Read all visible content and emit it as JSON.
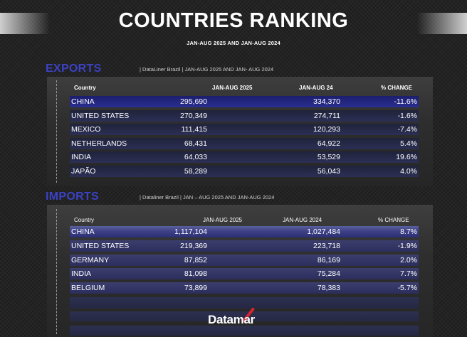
{
  "header": {
    "title": "COUNTRIES RANKING",
    "subtitle": "JAN-AUG 2025 AND JAN-AUG 2024"
  },
  "exports": {
    "title": "EXPORTS",
    "meta": "| DataLiner Brazil | JAN-AUG 2025 AND JAN- AUG 2024",
    "columns": [
      "Country",
      "JAN-AUG 2025",
      "JAN-AUG 24",
      "% CHANGE"
    ],
    "rows": [
      {
        "country": "CHINA",
        "y2025": "295,690",
        "y2024": "334,370",
        "change": "-11.6%"
      },
      {
        "country": "UNITED STATES",
        "y2025": "270,349",
        "y2024": "274,711",
        "change": "-1.6%"
      },
      {
        "country": "MEXICO",
        "y2025": "111,415",
        "y2024": "120,293",
        "change": "-7.4%"
      },
      {
        "country": "NETHERLANDS",
        "y2025": "68,431",
        "y2024": "64,922",
        "change": "5.4%"
      },
      {
        "country": "INDIA",
        "y2025": "64,033",
        "y2024": "53,529",
        "change": "19.6%"
      },
      {
        "country": "JAPÃO",
        "y2025": "58,289",
        "y2024": "56,043",
        "change": "4.0%"
      }
    ]
  },
  "imports": {
    "title": "IMPORTS",
    "meta": "| Dataliner Brazil | JAN – AUG 2025 AND JAN-AUG 2024",
    "columns": [
      "Country",
      "JAN-AUG 2025",
      "JAN-AUG 2024",
      "% CHANGE"
    ],
    "rows": [
      {
        "country": "CHINA",
        "y2025": "1,117,104",
        "y2024": "1,027,484",
        "change": "8.7%"
      },
      {
        "country": "UNITED STATES",
        "y2025": "219,369",
        "y2024": "223,718",
        "change": "-1.9%"
      },
      {
        "country": "GERMANY",
        "y2025": "87,852",
        "y2024": "86,169",
        "change": "2.0%"
      },
      {
        "country": "INDIA",
        "y2025": "81,098",
        "y2024": "75,284",
        "change": "7.7%"
      },
      {
        "country": "BELGIUM",
        "y2025": "73,899",
        "y2024": "78,383",
        "change": "-5.7%"
      }
    ]
  },
  "logo": {
    "text": "Datamar",
    "accent_color": "#d6262f"
  },
  "colors": {
    "section_title": "#3b42c4",
    "row_blue": "#2a2e90"
  }
}
